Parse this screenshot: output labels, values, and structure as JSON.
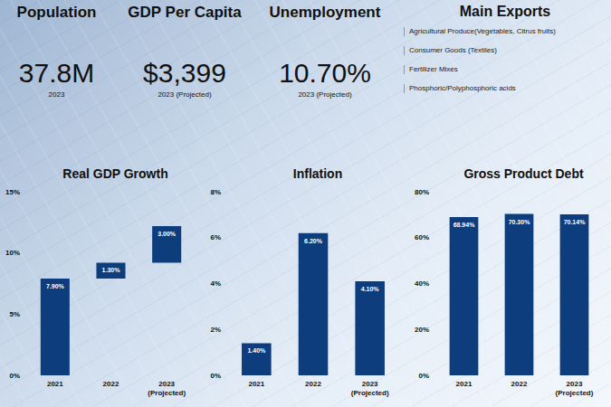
{
  "kpis": [
    {
      "title": "Population",
      "value": "37.8M",
      "subtitle": "2023"
    },
    {
      "title": "GDP Per Capita",
      "value": "$3,399",
      "subtitle": "2023 (Projected)"
    },
    {
      "title": "Unemployment",
      "value": "10.70%",
      "subtitle": "2023 (Projected)"
    }
  ],
  "main_exports": {
    "title": "Main Exports",
    "items": [
      "Agricultural Produce(Vegetables, Citrus fruits)",
      "Consumer Goods (Textiles)",
      "Fertilizer Mixes",
      "Phosphoric/Polyphosphoric acids"
    ]
  },
  "chart_data": [
    {
      "type": "waterfall",
      "title": "Real GDP Growth",
      "categories": [
        "2021",
        "2022",
        "2023 (Projected)"
      ],
      "values": [
        7.9,
        1.3,
        3.0
      ],
      "value_labels": [
        "7.90%",
        "1.30%",
        "3.00%"
      ],
      "color": "#0d3d7c",
      "ylim": [
        0,
        15
      ],
      "yticks": [
        {
          "value": 0,
          "label": "0%"
        },
        {
          "value": 5,
          "label": "5%"
        },
        {
          "value": 10,
          "label": "10%"
        },
        {
          "value": 15,
          "label": "15%"
        }
      ],
      "grid": false,
      "data_labels": true
    },
    {
      "type": "bar",
      "title": "Inflation",
      "categories": [
        "2021",
        "2022",
        "2023 (Projected)"
      ],
      "values": [
        1.4,
        6.2,
        4.1
      ],
      "value_labels": [
        "1.40%",
        "6.20%",
        "4.10%"
      ],
      "color": "#0d3d7c",
      "ylim": [
        0,
        8
      ],
      "yticks": [
        {
          "value": 0,
          "label": "0%"
        },
        {
          "value": 2,
          "label": "2%"
        },
        {
          "value": 4,
          "label": "4%"
        },
        {
          "value": 6,
          "label": "6%"
        },
        {
          "value": 8,
          "label": "8%"
        }
      ],
      "grid": false,
      "data_labels": true
    },
    {
      "type": "bar",
      "title": "Gross Product Debt",
      "categories": [
        "2021",
        "2022",
        "2023 (Projected)"
      ],
      "values": [
        68.94,
        70.3,
        70.14
      ],
      "value_labels": [
        "68.94%",
        "70.30%",
        "70.14%"
      ],
      "color": "#0d3d7c",
      "ylim": [
        0,
        80
      ],
      "yticks": [
        {
          "value": 0,
          "label": "0%"
        },
        {
          "value": 20,
          "label": "20%"
        },
        {
          "value": 40,
          "label": "40%"
        },
        {
          "value": 60,
          "label": "60%"
        },
        {
          "value": 80,
          "label": "80%"
        }
      ],
      "grid": false,
      "data_labels": true
    }
  ]
}
